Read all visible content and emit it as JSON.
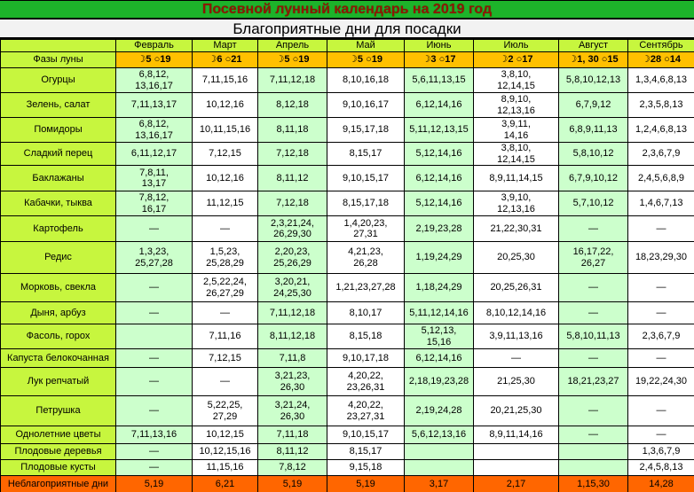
{
  "title": "Посевной лунный календарь на 2019 год",
  "subtitle": "Благоприятные дни для посадки",
  "colors": {
    "title_bg": "#1db32a",
    "title_text": "#8f1703",
    "subtitle_bg": "#f2f2f2",
    "label_bg": "#c7f63e",
    "moon_row_bg": "#ffc000",
    "cell_green": "#ccffcc",
    "cell_white": "#ffffff",
    "unfavorable_bg": "#ff6600"
  },
  "icons": {
    "waxing_moon": "☽",
    "full_moon": "○"
  },
  "table": {
    "months": [
      "Февраль",
      "Март",
      "Апрель",
      "Май",
      "Июнь",
      "Июль",
      "Август",
      "Сентябрь"
    ],
    "moon_row": {
      "label": "Фазы луны",
      "values": [
        "☽5   ○19",
        "☽6   ○21",
        "☽5   ○19",
        "☽5   ○19",
        "☽3   ○17",
        "☽2   ○17",
        "☽1, 30  ○15",
        "☽28  ○14"
      ]
    },
    "rows": [
      {
        "label": "Огурцы",
        "values": [
          "6,8,12,\n13,16,17",
          "7,11,15,16",
          "7,11,12,18",
          "8,10,16,18",
          "5,6,11,13,15",
          "3,8,10,\n12,14,15",
          "5,8,10,12,13",
          "1,3,4,6,8,13"
        ]
      },
      {
        "label": "Зелень, салат",
        "values": [
          "7,11,13,17",
          "10,12,16",
          "8,12,18",
          "9,10,16,17",
          "6,12,14,16",
          "8,9,10,\n12,13,16",
          "6,7,9,12",
          "2,3,5,8,13"
        ]
      },
      {
        "label": "Помидоры",
        "values": [
          "6,8,12,\n13,16,17",
          "10,11,15,16",
          "8,11,18",
          "9,15,17,18",
          "5,11,12,13,15",
          "3,9,11,\n14,16",
          "6,8,9,11,13",
          "1,2,4,6,8,13"
        ]
      },
      {
        "label": "Сладкий перец",
        "values": [
          "6,11,12,17",
          "7,12,15",
          "7,12,18",
          "8,15,17",
          "5,12,14,16",
          "3,8,10,\n12,14,15",
          "5,8,10,12",
          "2,3,6,7,9"
        ]
      },
      {
        "label": "Баклажаны",
        "values": [
          "7,8,11,\n13,17",
          "10,12,16",
          "8,11,12",
          "9,10,15,17",
          "6,12,14,16",
          "8,9,11,14,15",
          "6,7,9,10,12",
          "2,4,5,6,8,9"
        ]
      },
      {
        "label": "Кабачки, тыква",
        "values": [
          "7,8,12,\n16,17",
          "11,12,15",
          "7,12,18",
          "8,15,17,18",
          "5,12,14,16",
          "3,9,10,\n12,13,16",
          "5,7,10,12",
          "1,4,6,7,13"
        ]
      },
      {
        "label": "Картофель",
        "values": [
          "—",
          "—",
          "2,3,21,24,\n26,29,30",
          "1,4,20,23,\n27,31",
          "2,19,23,28",
          "21,22,30,31",
          "—",
          "—"
        ]
      },
      {
        "label": "Редис",
        "values": [
          "1,3,23,\n25,27,28",
          "1,5,23,\n25,28,29",
          "2,20,23,\n25,26,29",
          "4,21,23,\n26,28",
          "1,19,24,29",
          "20,25,30",
          "16,17,22,\n26,27",
          "18,23,29,30"
        ]
      },
      {
        "label": "Морковь, свекла",
        "values": [
          "—",
          "2,5,22,24,\n26,27,29",
          "3,20,21,\n24,25,30",
          "1,21,23,27,28",
          "1,18,24,29",
          "20,25,26,31",
          "—",
          "—"
        ]
      },
      {
        "label": "Дыня, арбуз",
        "values": [
          "—",
          "—",
          "7,11,12,18",
          "8,10,17",
          "5,11,12,14,16",
          "8,10,12,14,16",
          "—",
          "—"
        ]
      },
      {
        "label": "Фасоль, горох",
        "values": [
          "",
          "7,11,16",
          "8,11,12,18",
          "8,15,18",
          "5,12,13,\n15,16",
          "3,9,11,13,16",
          "5,8,10,11,13",
          "2,3,6,7,9"
        ]
      },
      {
        "label": "Капуста белокочанная",
        "values": [
          "—",
          "7,12,15",
          "7,11,8",
          "9,10,17,18",
          "6,12,14,16",
          "—",
          "—",
          "—"
        ]
      },
      {
        "label": "Лук репчатый",
        "values": [
          "—",
          "—",
          "3,21,23,\n26,30",
          "4,20,22,\n23,26,31",
          "2,18,19,23,28",
          "21,25,30",
          "18,21,23,27",
          "19,22,24,30"
        ]
      },
      {
        "label": "Петрушка",
        "values": [
          "—",
          "5,22,25,\n27,29",
          "3,21,24,\n26,30",
          "4,20,22,\n23,27,31",
          "2,19,24,28",
          "20,21,25,30",
          "—",
          "—"
        ]
      },
      {
        "label": "Однолетние цветы",
        "values": [
          "7,11,13,16",
          "10,12,15",
          "7,11,18",
          "9,10,15,17",
          "5,6,12,13,16",
          "8,9,11,14,16",
          "—",
          "—"
        ]
      },
      {
        "label": "Плодовые деревья",
        "values": [
          "—",
          "10,12,15,16",
          "8,11,12",
          "8,15,17",
          "",
          "",
          "",
          "1,3,6,7,9"
        ]
      },
      {
        "label": "Плодовые кусты",
        "values": [
          "—",
          "11,15,16",
          "7,8,12",
          "9,15,18",
          "",
          "",
          "",
          "2,4,5,8,13"
        ]
      }
    ],
    "unfavorable_row": {
      "label": "Неблагоприятные дни",
      "values": [
        "5,19",
        "6,21",
        "5,19",
        "5,19",
        "3,17",
        "2,17",
        "1,15,30",
        "14,28"
      ]
    }
  }
}
